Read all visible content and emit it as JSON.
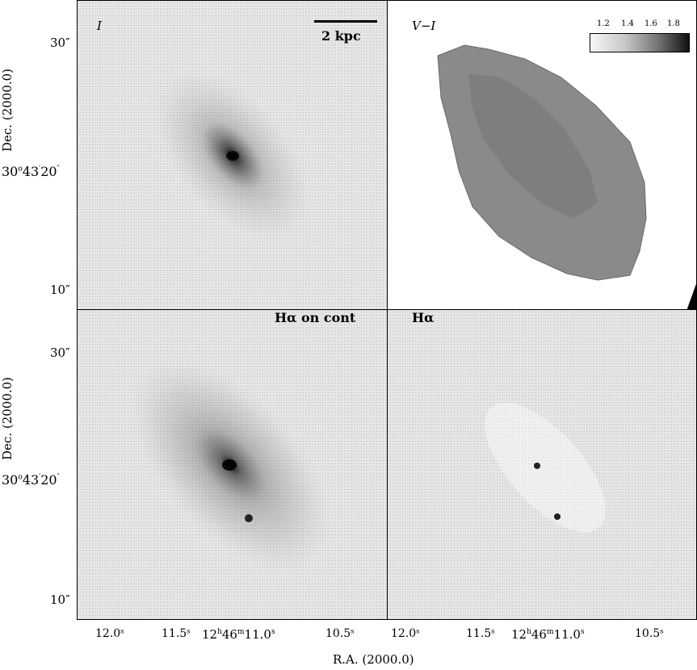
{
  "panels": {
    "top_left": {
      "label": "I",
      "scalebar_label": "2 kpc"
    },
    "top_right": {
      "label": "V−I",
      "colorbar_ticks": [
        "1.2",
        "1.4",
        "1.6",
        "1.8"
      ]
    },
    "bottom_left": {
      "label": "Hα on cont"
    },
    "bottom_right": {
      "label": "Hα"
    }
  },
  "y_axis": {
    "title": "Dec. (2000.0)",
    "center_label": "30°43′20″",
    "center_deg": "30",
    "center_arcmin": "43",
    "center_arcsec": "20",
    "ticks": [
      "30″",
      "10″"
    ]
  },
  "x_axis": {
    "title": "R.A. (2000.0)",
    "ticks": [
      "12.0ˢ",
      "11.5ˢ",
      "11.0ˢ",
      "10.5ˢ"
    ],
    "center_label": "12ʰ46ᵐ11.0ˢ",
    "center_h": "12",
    "center_m": "46"
  }
}
